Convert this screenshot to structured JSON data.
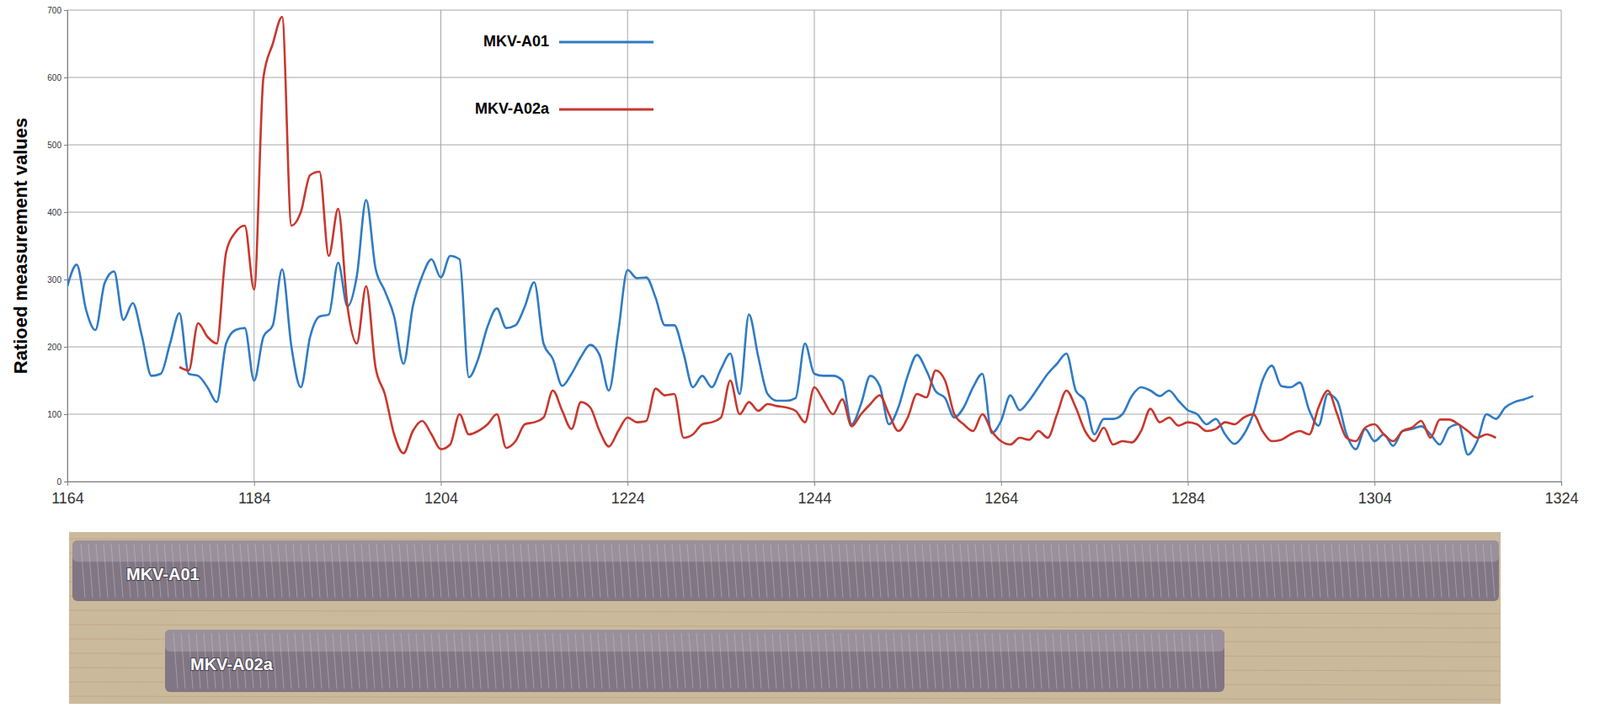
{
  "chart_data": {
    "type": "line",
    "y_label": "Ratioed measurement values",
    "x": [
      1164,
      1165,
      1166,
      1167,
      1168,
      1169,
      1170,
      1171,
      1172,
      1173,
      1174,
      1175,
      1176,
      1177,
      1178,
      1179,
      1180,
      1181,
      1182,
      1183,
      1184,
      1185,
      1186,
      1187,
      1188,
      1189,
      1190,
      1191,
      1192,
      1193,
      1194,
      1195,
      1196,
      1197,
      1198,
      1199,
      1200,
      1201,
      1202,
      1203,
      1204,
      1205,
      1206,
      1207,
      1208,
      1209,
      1210,
      1211,
      1212,
      1213,
      1214,
      1215,
      1216,
      1217,
      1218,
      1219,
      1220,
      1221,
      1222,
      1223,
      1224,
      1225,
      1226,
      1227,
      1228,
      1229,
      1230,
      1231,
      1232,
      1233,
      1234,
      1235,
      1236,
      1237,
      1238,
      1239,
      1240,
      1241,
      1242,
      1243,
      1244,
      1245,
      1246,
      1247,
      1248,
      1249,
      1250,
      1251,
      1252,
      1253,
      1254,
      1255,
      1256,
      1257,
      1258,
      1259,
      1260,
      1261,
      1262,
      1263,
      1264,
      1265,
      1266,
      1267,
      1268,
      1269,
      1270,
      1271,
      1272,
      1273,
      1274,
      1275,
      1276,
      1277,
      1278,
      1279,
      1280,
      1281,
      1282,
      1283,
      1284,
      1285,
      1286,
      1287,
      1288,
      1289,
      1290,
      1291,
      1292,
      1293,
      1294,
      1295,
      1296,
      1297,
      1298,
      1299,
      1300,
      1301,
      1302,
      1303,
      1304,
      1305,
      1306,
      1307,
      1308,
      1309,
      1310,
      1311,
      1312,
      1313,
      1314,
      1315,
      1316,
      1317,
      1318,
      1319,
      1320,
      1321
    ],
    "series": [
      {
        "name": "MKV-A01",
        "color": "#2f7bc4",
        "values": [
          290,
          322,
          255,
          225,
          295,
          312,
          240,
          265,
          215,
          157,
          160,
          205,
          250,
          160,
          157,
          140,
          118,
          205,
          225,
          228,
          150,
          215,
          232,
          315,
          200,
          140,
          215,
          245,
          248,
          325,
          260,
          305,
          418,
          317,
          283,
          245,
          175,
          260,
          305,
          330,
          303,
          335,
          330,
          155,
          182,
          230,
          257,
          228,
          232,
          260,
          296,
          205,
          182,
          142,
          160,
          185,
          203,
          188,
          135,
          222,
          314,
          302,
          303,
          273,
          232,
          232,
          190,
          140,
          157,
          140,
          167,
          190,
          130,
          248,
          185,
          130,
          120,
          120,
          124,
          205,
          160,
          157,
          157,
          150,
          85,
          115,
          157,
          142,
          85,
          110,
          157,
          188,
          165,
          134,
          124,
          95,
          110,
          140,
          160,
          72,
          90,
          128,
          106,
          120,
          140,
          160,
          175,
          190,
          135,
          120,
          70,
          93,
          93,
          100,
          127,
          140,
          135,
          127,
          135,
          120,
          106,
          100,
          85,
          93,
          70,
          56,
          70,
          100,
          150,
          172,
          142,
          140,
          147,
          106,
          83,
          130,
          120,
          70,
          48,
          78,
          60,
          70,
          53,
          75,
          78,
          82,
          70,
          55,
          80,
          85,
          40,
          60,
          100,
          93,
          110,
          118,
          122,
          127
        ]
      },
      {
        "name": "MKV-A02a",
        "color": "#c8372d",
        "values": [
          null,
          null,
          null,
          null,
          null,
          null,
          null,
          null,
          null,
          null,
          null,
          null,
          170,
          165,
          235,
          215,
          205,
          340,
          370,
          380,
          285,
          600,
          650,
          690,
          380,
          400,
          455,
          460,
          335,
          405,
          260,
          205,
          290,
          170,
          130,
          70,
          42,
          75,
          90,
          70,
          48,
          55,
          100,
          70,
          75,
          85,
          100,
          50,
          60,
          85,
          88,
          95,
          135,
          105,
          78,
          118,
          110,
          75,
          52,
          75,
          95,
          88,
          90,
          138,
          128,
          130,
          65,
          70,
          85,
          88,
          95,
          150,
          100,
          118,
          105,
          115,
          112,
          110,
          105,
          88,
          140,
          120,
          100,
          122,
          82,
          100,
          115,
          128,
          100,
          75,
          95,
          130,
          125,
          165,
          150,
          100,
          85,
          75,
          100,
          75,
          60,
          55,
          65,
          62,
          75,
          65,
          100,
          135,
          110,
          75,
          60,
          80,
          55,
          60,
          58,
          75,
          108,
          88,
          95,
          83,
          88,
          85,
          75,
          78,
          88,
          85,
          95,
          100,
          75,
          60,
          62,
          70,
          75,
          70,
          110,
          135,
          100,
          65,
          60,
          80,
          85,
          70,
          60,
          75,
          80,
          90,
          65,
          92,
          92,
          85,
          75,
          65,
          70,
          65,
          null,
          null,
          null,
          null
        ]
      }
    ],
    "xlim": [
      1164,
      1324
    ],
    "xticks": [
      1164,
      1184,
      1204,
      1224,
      1244,
      1264,
      1284,
      1304,
      1324
    ],
    "ylim": [
      0,
      700
    ],
    "yticks": [
      0,
      100,
      200,
      300,
      400,
      500,
      600,
      700
    ],
    "grid": true,
    "legend": "top"
  }
}
